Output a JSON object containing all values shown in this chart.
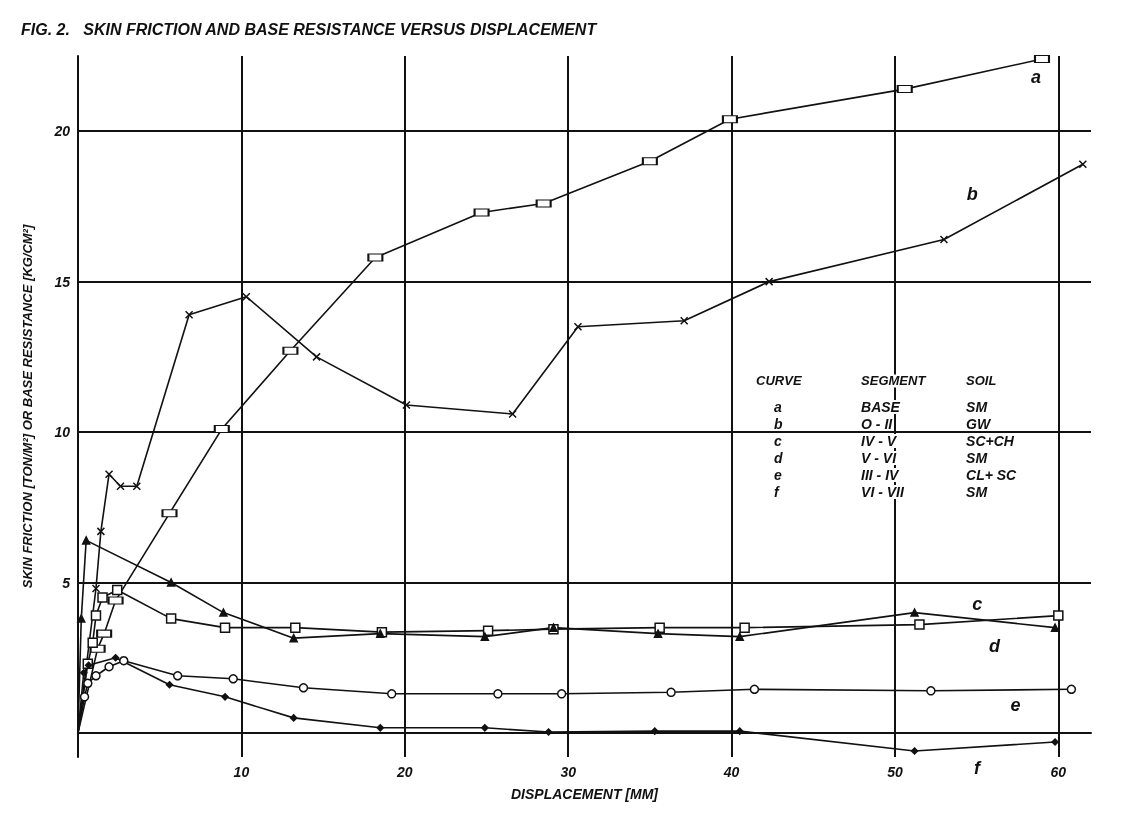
{
  "chart_data": {
    "type": "line",
    "title": "FIG. 2.   SKIN FRICTION AND BASE RESISTANCE VERSUS DISPLACEMENT",
    "xlabel": "DISPLACEMENT [MM]",
    "ylabel": "SKIN FRICTION [TON/M²] OR BASE RESISTANCE [KG/CM²]",
    "xlim": [
      0,
      62
    ],
    "xticks": [
      {
        "value": 0,
        "label": null
      },
      10,
      20,
      30,
      40,
      50,
      60
    ],
    "ylim": [
      -0.8,
      22.5
    ],
    "yticks": [
      {
        "value": 0,
        "label": null
      },
      5,
      10,
      15,
      20
    ],
    "grid": true,
    "line_style": "solid",
    "series": [
      {
        "name": "a",
        "color": "#111111",
        "marker": "square",
        "x": [
          0,
          1.2,
          1.6,
          2.3,
          5.6,
          8.8,
          13.0,
          18.2,
          24.7,
          28.5,
          35.0,
          39.9,
          50.6,
          59.0
        ],
        "values": [
          0,
          2.8,
          3.3,
          4.4,
          7.3,
          10.1,
          12.7,
          15.8,
          17.3,
          17.6,
          19.0,
          20.4,
          21.4,
          22.4
        ]
      },
      {
        "name": "b",
        "color": "#111111",
        "marker": "cross",
        "x": [
          0,
          1.1,
          1.4,
          1.9,
          2.6,
          3.6,
          6.8,
          10.3,
          14.6,
          20.1,
          26.6,
          30.6,
          37.1,
          42.3,
          53.0,
          61.5
        ],
        "values": [
          0,
          4.8,
          6.7,
          8.6,
          8.2,
          8.2,
          13.9,
          14.5,
          12.5,
          10.9,
          10.6,
          13.5,
          13.7,
          15.0,
          16.4,
          18.9
        ]
      },
      {
        "name": "c",
        "color": "#111111",
        "marker": "square",
        "x": [
          0,
          0.6,
          0.9,
          1.1,
          1.5,
          2.4,
          5.7,
          9.0,
          13.3,
          18.6,
          25.1,
          29.1,
          35.6,
          40.8,
          51.5,
          60.0
        ],
        "values": [
          0,
          2.3,
          3.0,
          3.9,
          4.5,
          4.75,
          3.8,
          3.5,
          3.5,
          3.35,
          3.4,
          3.45,
          3.5,
          3.5,
          3.6,
          3.9
        ]
      },
      {
        "name": "d",
        "color": "#111111",
        "marker": "triangle",
        "x": [
          0,
          0.2,
          0.5,
          5.7,
          8.9,
          13.2,
          18.5,
          24.9,
          29.1,
          35.5,
          40.5,
          51.2,
          59.8
        ],
        "values": [
          0,
          3.8,
          6.4,
          5.0,
          4.0,
          3.15,
          3.3,
          3.2,
          3.5,
          3.3,
          3.2,
          4.0,
          3.5
        ]
      },
      {
        "name": "e",
        "color": "#111111",
        "marker": "circle",
        "x": [
          0,
          0.4,
          0.6,
          1.1,
          1.9,
          2.8,
          6.1,
          9.5,
          13.8,
          19.2,
          25.7,
          29.6,
          36.3,
          41.4,
          52.2,
          60.8
        ],
        "values": [
          0,
          1.2,
          1.65,
          1.9,
          2.2,
          2.4,
          1.9,
          1.8,
          1.5,
          1.3,
          1.3,
          1.3,
          1.35,
          1.45,
          1.4,
          1.45
        ]
      },
      {
        "name": "f",
        "color": "#111111",
        "marker": "diamond",
        "x": [
          0,
          0.35,
          0.65,
          2.3,
          5.6,
          9.0,
          13.2,
          18.5,
          24.9,
          28.8,
          35.3,
          40.5,
          51.2,
          59.8
        ],
        "values": [
          0,
          2.0,
          2.25,
          2.5,
          1.6,
          1.2,
          0.5,
          0.17,
          0.17,
          0.03,
          0.06,
          0.06,
          -0.6,
          -0.3
        ]
      }
    ],
    "annotations": [
      "CURVE",
      "SEGMENT",
      "SOIL",
      "a",
      "BASE",
      "SM",
      "b",
      "O - II",
      "GW",
      "c",
      "IV - V",
      "SC+CH",
      "d",
      "V - VI",
      "SM",
      "e",
      "III - IV",
      "CL+ SC",
      "f",
      "VI - VII",
      "SM"
    ]
  }
}
